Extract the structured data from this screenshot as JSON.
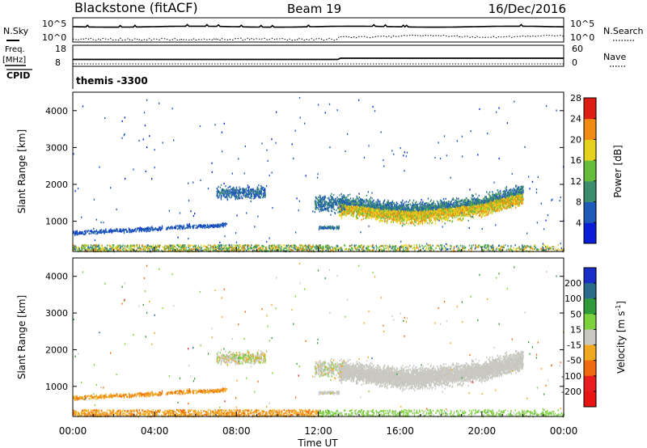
{
  "header": {
    "station": "Blackstone (fitACF)",
    "beam": "Beam 19",
    "date": "16/Dec/2016"
  },
  "noise_panel": {
    "left_label": "N.Sky",
    "right_label": "N.Search",
    "left_ticks": [
      "10^5",
      "10^0"
    ],
    "right_ticks": [
      "10^5",
      "10^0"
    ]
  },
  "freq_panel": {
    "left_label_line1": "Freq.",
    "left_label_line2": "[MHz]",
    "left_ticks": [
      "18",
      "8"
    ],
    "right_label": "Nave",
    "right_ticks": [
      "60",
      "0"
    ]
  },
  "cpid_panel": {
    "label": "CPID",
    "value": "themis -3300"
  },
  "chart_data": [
    {
      "type": "heatmap",
      "name": "power",
      "ylabel": "Slant Range [km]",
      "xlabel": "",
      "ylim": [
        180,
        4500
      ],
      "y_ticks": [
        "1000",
        "2000",
        "3000",
        "4000"
      ],
      "colorbar_label": "Power [dB]",
      "colorbar_ticks": [
        "4",
        "8",
        "12",
        "16",
        "20",
        "24",
        "28"
      ],
      "colorbar_colors": [
        "#0a1ed8",
        "#1e5ab8",
        "#3c8c6e",
        "#66bd3c",
        "#e6d21e",
        "#f08c14",
        "#dc1e14"
      ],
      "colorbar_range": [
        0,
        32
      ]
    },
    {
      "type": "heatmap",
      "name": "velocity",
      "ylabel": "Slant Range [km]",
      "xlabel": "Time UT",
      "ylim": [
        180,
        4500
      ],
      "y_ticks": [
        "1000",
        "2000",
        "3000",
        "4000"
      ],
      "x_ticks": [
        "00:00",
        "04:00",
        "08:00",
        "12:00",
        "16:00",
        "20:00",
        "00:00"
      ],
      "colorbar_label_main": "Velocity [m s",
      "colorbar_label_exp": "-1",
      "colorbar_label_end": "]",
      "colorbar_ticks": [
        "200",
        "100",
        "50",
        "15",
        "-15",
        "-50",
        "-100",
        "-200"
      ],
      "colorbar_colors": [
        "#1a2ec8",
        "#2a6a8a",
        "#2e9a3a",
        "#7cd23c",
        "#c8c8c0",
        "#f0a81e",
        "#f06a10",
        "#e81e1e",
        "#e81414"
      ]
    }
  ]
}
